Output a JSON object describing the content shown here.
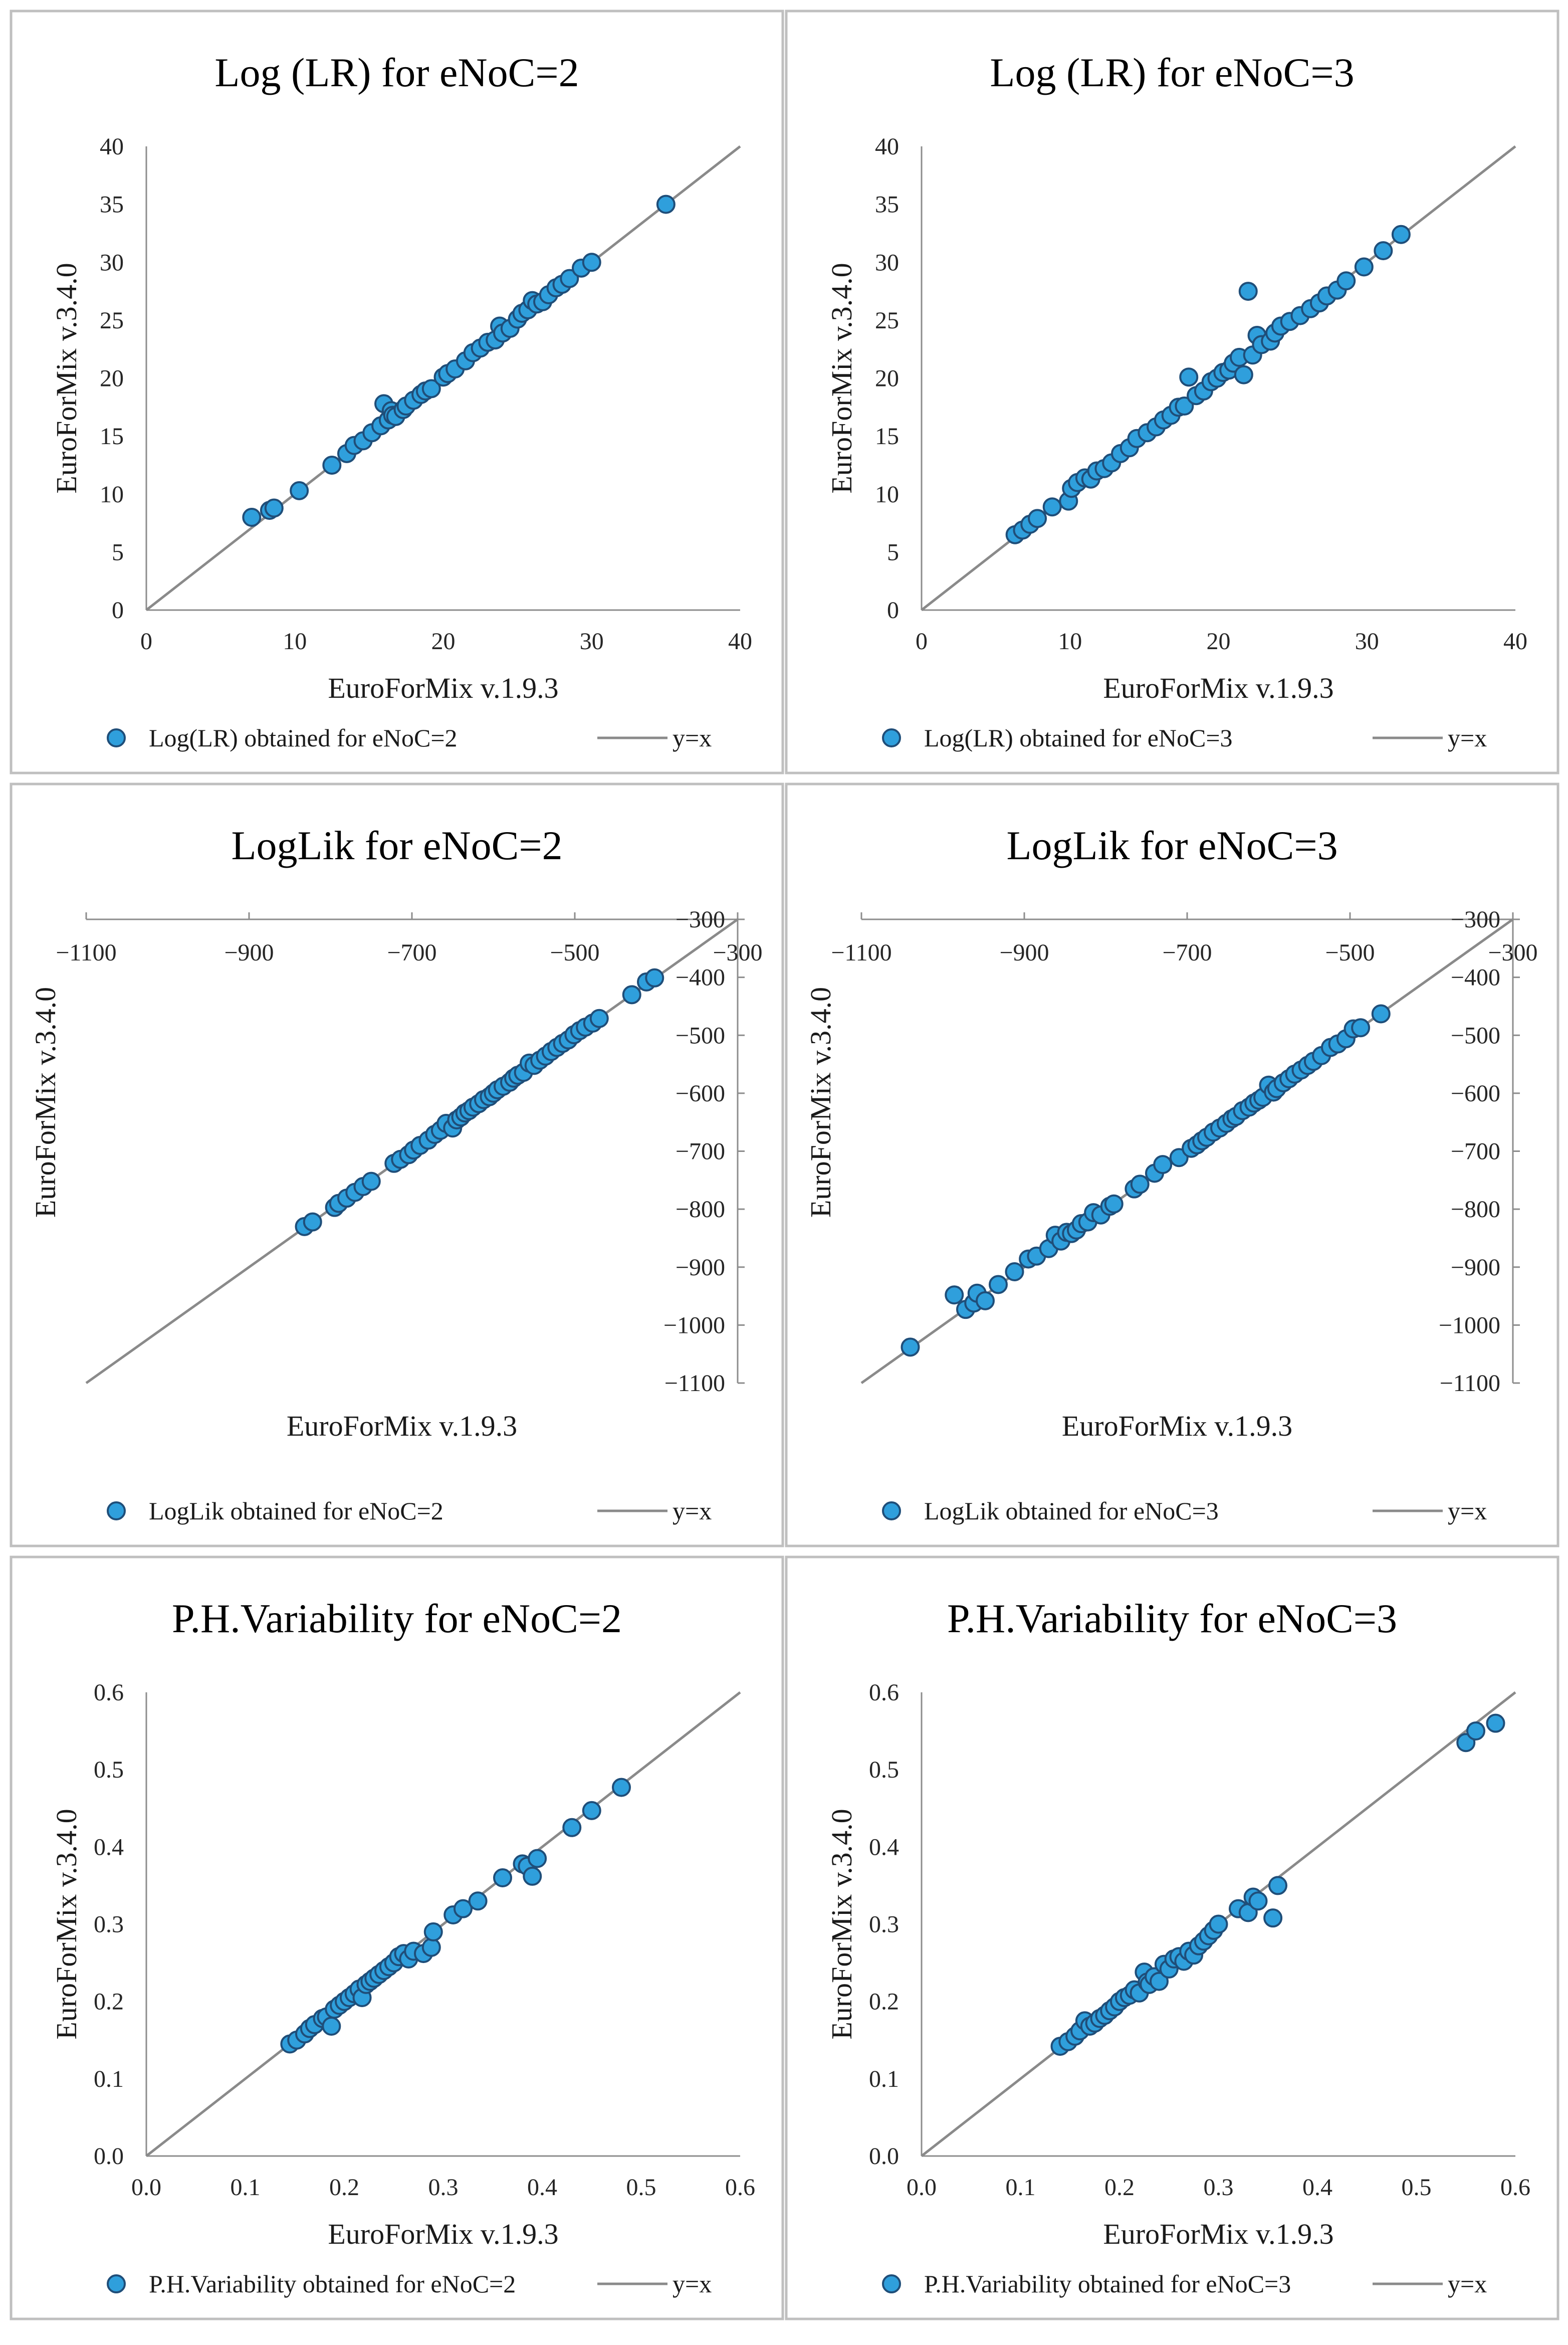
{
  "colors": {
    "marker_fill": "#2f9fdc",
    "marker_edge": "#1f4e79",
    "identity_line": "#8a8a8a",
    "panel_border": "#bfbfbf"
  },
  "chart_data": [
    {
      "type": "scatter",
      "title": "Log (LR) for eNoC=2",
      "xlabel": "EuroForMix v.1.9.3",
      "ylabel": "EuroForMix v.3.4.0",
      "xlim": [
        0,
        40
      ],
      "ylim": [
        0,
        40
      ],
      "xticks": [
        0,
        10,
        20,
        30,
        40
      ],
      "yticks": [
        0,
        5,
        10,
        15,
        20,
        25,
        30,
        35,
        40
      ],
      "tick_decimals": 0,
      "axis_style": "standard",
      "legend": {
        "series_label": "Log(LR) obtained for eNoC=2",
        "line_label": "y=x",
        "placement": "bottom"
      },
      "reference_line": {
        "name": "y=x",
        "from": [
          0,
          0
        ],
        "to": [
          40,
          40
        ]
      },
      "x": [
        7.1,
        8.3,
        8.6,
        10.3,
        12.5,
        13.5,
        14.0,
        14.6,
        15.2,
        15.8,
        16.0,
        16.3,
        16.5,
        16.6,
        16.8,
        17.3,
        17.5,
        18.0,
        18.5,
        18.8,
        19.2,
        20.0,
        20.3,
        20.8,
        21.5,
        22.0,
        22.5,
        23.0,
        23.5,
        23.8,
        24.0,
        24.5,
        25.0,
        25.3,
        25.7,
        26.0,
        26.3,
        26.7,
        27.1,
        27.6,
        28.0,
        28.5,
        29.3,
        30.0,
        35.0
      ],
      "y": [
        8.0,
        8.6,
        8.8,
        10.3,
        12.5,
        13.5,
        14.2,
        14.6,
        15.3,
        15.9,
        17.8,
        16.4,
        17.2,
        16.8,
        16.7,
        17.3,
        17.6,
        18.1,
        18.6,
        18.9,
        19.1,
        20.1,
        20.4,
        20.8,
        21.5,
        22.2,
        22.6,
        23.1,
        23.3,
        24.5,
        23.9,
        24.3,
        25.1,
        25.6,
        25.9,
        26.7,
        26.4,
        26.6,
        27.2,
        27.8,
        28.1,
        28.6,
        29.5,
        30.0,
        35.0
      ]
    },
    {
      "type": "scatter",
      "title": "Log (LR) for eNoC=3",
      "xlabel": "EuroForMix v.1.9.3",
      "ylabel": "EuroForMix v.3.4.0",
      "xlim": [
        0,
        40
      ],
      "ylim": [
        0,
        40
      ],
      "xticks": [
        0,
        10,
        20,
        30,
        40
      ],
      "yticks": [
        0,
        5,
        10,
        15,
        20,
        25,
        30,
        35,
        40
      ],
      "tick_decimals": 0,
      "axis_style": "standard",
      "legend": {
        "series_label": "Log(LR) obtained for eNoC=3",
        "line_label": "y=x",
        "placement": "bottom"
      },
      "reference_line": {
        "name": "y=x",
        "from": [
          0,
          0
        ],
        "to": [
          40,
          40
        ]
      },
      "x": [
        6.3,
        6.8,
        7.3,
        7.8,
        8.8,
        9.9,
        10.1,
        10.5,
        11.0,
        11.4,
        11.8,
        12.3,
        12.8,
        13.4,
        14.0,
        14.5,
        15.2,
        15.8,
        16.3,
        16.8,
        17.3,
        17.7,
        18.0,
        18.5,
        19.0,
        19.5,
        19.9,
        20.3,
        20.7,
        21.0,
        21.4,
        21.7,
        22.0,
        22.3,
        22.6,
        22.9,
        23.5,
        23.8,
        24.2,
        24.8,
        25.5,
        26.2,
        26.8,
        27.3,
        28.0,
        28.6,
        29.8,
        31.1,
        32.3
      ],
      "y": [
        6.5,
        6.9,
        7.4,
        7.9,
        8.9,
        9.4,
        10.5,
        11.0,
        11.4,
        11.3,
        12.0,
        12.2,
        12.7,
        13.5,
        14.0,
        14.8,
        15.3,
        15.8,
        16.4,
        16.8,
        17.5,
        17.6,
        20.1,
        18.5,
        18.9,
        19.7,
        20.0,
        20.5,
        20.7,
        21.3,
        21.8,
        20.3,
        27.5,
        22.0,
        23.7,
        22.9,
        23.2,
        23.9,
        24.5,
        24.9,
        25.4,
        26.0,
        26.5,
        27.1,
        27.6,
        28.4,
        29.6,
        31.0,
        32.4
      ]
    },
    {
      "type": "scatter",
      "title": "LogLik for eNoC=2",
      "xlabel": "EuroForMix v.1.9.3",
      "ylabel": "EuroForMix v.3.4.0",
      "xlim": [
        -1100,
        -300
      ],
      "ylim": [
        -1100,
        -300
      ],
      "xticks": [
        -1100,
        -900,
        -700,
        -500,
        -300
      ],
      "yticks": [
        -1100,
        -1000,
        -900,
        -800,
        -700,
        -600,
        -500,
        -400,
        -300
      ],
      "tick_decimals": 0,
      "axis_style": "crossed-top-right",
      "legend": {
        "series_label": "LogLik obtained for eNoC=2",
        "line_label": "y=x",
        "placement": "bottom"
      },
      "reference_line": {
        "name": "y=x",
        "from": [
          -1100,
          -1100
        ],
        "to": [
          -300,
          -300
        ]
      },
      "x": [
        -832,
        -822,
        -795,
        -790,
        -780,
        -770,
        -760,
        -750,
        -722,
        -714,
        -704,
        -698,
        -690,
        -680,
        -672,
        -665,
        -658,
        -650,
        -645,
        -640,
        -635,
        -630,
        -625,
        -618,
        -612,
        -605,
        -600,
        -595,
        -588,
        -580,
        -575,
        -570,
        -563,
        -556,
        -550,
        -543,
        -536,
        -529,
        -522,
        -515,
        -508,
        -501,
        -494,
        -487,
        -478,
        -470,
        -430,
        -412,
        -402
      ],
      "y": [
        -830,
        -822,
        -797,
        -790,
        -781,
        -771,
        -761,
        -752,
        -721,
        -714,
        -706,
        -698,
        -690,
        -681,
        -671,
        -664,
        -652,
        -660,
        -646,
        -641,
        -634,
        -630,
        -624,
        -618,
        -611,
        -606,
        -600,
        -594,
        -588,
        -581,
        -574,
        -569,
        -564,
        -548,
        -552,
        -543,
        -536,
        -528,
        -521,
        -514,
        -508,
        -499,
        -492,
        -486,
        -479,
        -471,
        -430,
        -408,
        -401
      ]
    },
    {
      "type": "scatter",
      "title": "LogLik for eNoC=3",
      "xlabel": "EuroForMix v.1.9.3",
      "ylabel": "EuroForMix v.3.4.0",
      "xlim": [
        -1100,
        -300
      ],
      "ylim": [
        -1100,
        -300
      ],
      "xticks": [
        -1100,
        -900,
        -700,
        -500,
        -300
      ],
      "yticks": [
        -1100,
        -1000,
        -900,
        -800,
        -700,
        -600,
        -500,
        -400,
        -300
      ],
      "tick_decimals": 0,
      "axis_style": "crossed-top-right",
      "legend": {
        "series_label": "LogLik obtained for eNoC=3",
        "line_label": "y=x",
        "placement": "bottom"
      },
      "reference_line": {
        "name": "y=x",
        "from": [
          -1100,
          -1100
        ],
        "to": [
          -300,
          -300
        ]
      },
      "x": [
        -1040,
        -986,
        -972,
        -962,
        -958,
        -948,
        -932,
        -912,
        -895,
        -885,
        -870,
        -862,
        -855,
        -848,
        -842,
        -836,
        -830,
        -822,
        -815,
        -806,
        -795,
        -790,
        -765,
        -758,
        -740,
        -730,
        -710,
        -695,
        -688,
        -682,
        -676,
        -668,
        -660,
        -652,
        -645,
        -640,
        -632,
        -624,
        -618,
        -612,
        -607,
        -600,
        -594,
        -590,
        -582,
        -575,
        -568,
        -560,
        -552,
        -545,
        -535,
        -524,
        -515,
        -505,
        -496,
        -487,
        -462
      ],
      "y": [
        -1038,
        -948,
        -973,
        -962,
        -945,
        -958,
        -930,
        -908,
        -886,
        -881,
        -868,
        -845,
        -855,
        -840,
        -842,
        -836,
        -825,
        -822,
        -806,
        -810,
        -795,
        -791,
        -765,
        -757,
        -738,
        -723,
        -711,
        -695,
        -689,
        -682,
        -676,
        -667,
        -660,
        -652,
        -644,
        -640,
        -630,
        -624,
        -617,
        -612,
        -607,
        -586,
        -598,
        -592,
        -582,
        -575,
        -567,
        -560,
        -552,
        -545,
        -535,
        -521,
        -515,
        -506,
        -489,
        -487,
        -463
      ]
    },
    {
      "type": "scatter",
      "title": "P.H.Variability for eNoC=2",
      "xlabel": "EuroForMix v.1.9.3",
      "ylabel": "EuroForMix v.3.4.0",
      "xlim": [
        0,
        0.6
      ],
      "ylim": [
        0,
        0.6
      ],
      "xticks": [
        0.0,
        0.1,
        0.2,
        0.3,
        0.4,
        0.5,
        0.6
      ],
      "yticks": [
        0.0,
        0.1,
        0.2,
        0.3,
        0.4,
        0.5,
        0.6
      ],
      "tick_decimals": 1,
      "axis_style": "standard",
      "legend": {
        "series_label": "P.H.Variability obtained for eNoC=2",
        "line_label": "y=x",
        "placement": "bottom"
      },
      "reference_line": {
        "name": "y=x",
        "from": [
          0,
          0
        ],
        "to": [
          0.6,
          0.6
        ]
      },
      "x": [
        0.145,
        0.152,
        0.16,
        0.165,
        0.17,
        0.178,
        0.182,
        0.187,
        0.19,
        0.195,
        0.2,
        0.205,
        0.21,
        0.215,
        0.218,
        0.222,
        0.226,
        0.23,
        0.235,
        0.24,
        0.245,
        0.25,
        0.255,
        0.26,
        0.265,
        0.27,
        0.28,
        0.288,
        0.29,
        0.31,
        0.32,
        0.335,
        0.36,
        0.38,
        0.385,
        0.39,
        0.395,
        0.43,
        0.45,
        0.48
      ],
      "y": [
        0.145,
        0.15,
        0.158,
        0.165,
        0.17,
        0.178,
        0.18,
        0.168,
        0.19,
        0.195,
        0.2,
        0.205,
        0.21,
        0.216,
        0.205,
        0.222,
        0.226,
        0.23,
        0.235,
        0.24,
        0.245,
        0.25,
        0.258,
        0.262,
        0.255,
        0.265,
        0.262,
        0.27,
        0.29,
        0.312,
        0.32,
        0.33,
        0.36,
        0.378,
        0.375,
        0.362,
        0.385,
        0.425,
        0.447,
        0.477
      ]
    },
    {
      "type": "scatter",
      "title": "P.H.Variability for eNoC=3",
      "xlabel": "EuroForMix v.1.9.3",
      "ylabel": "EuroForMix v.3.4.0",
      "xlim": [
        0,
        0.6
      ],
      "ylim": [
        0,
        0.6
      ],
      "xticks": [
        0.0,
        0.1,
        0.2,
        0.3,
        0.4,
        0.5,
        0.6
      ],
      "yticks": [
        0.0,
        0.1,
        0.2,
        0.3,
        0.4,
        0.5,
        0.6
      ],
      "tick_decimals": 1,
      "axis_style": "standard",
      "legend": {
        "series_label": "P.H.Variability obtained for eNoC=3",
        "line_label": "y=x",
        "placement": "bottom"
      },
      "reference_line": {
        "name": "y=x",
        "from": [
          0,
          0
        ],
        "to": [
          0.6,
          0.6
        ]
      },
      "x": [
        0.14,
        0.148,
        0.155,
        0.16,
        0.165,
        0.17,
        0.175,
        0.18,
        0.185,
        0.19,
        0.195,
        0.2,
        0.205,
        0.21,
        0.215,
        0.22,
        0.225,
        0.228,
        0.23,
        0.235,
        0.24,
        0.245,
        0.25,
        0.255,
        0.26,
        0.265,
        0.27,
        0.275,
        0.28,
        0.285,
        0.29,
        0.295,
        0.3,
        0.32,
        0.33,
        0.335,
        0.34,
        0.355,
        0.36,
        0.55,
        0.56,
        0.58
      ],
      "y": [
        0.142,
        0.148,
        0.155,
        0.162,
        0.175,
        0.168,
        0.172,
        0.178,
        0.182,
        0.188,
        0.193,
        0.2,
        0.205,
        0.208,
        0.215,
        0.211,
        0.238,
        0.225,
        0.222,
        0.232,
        0.226,
        0.248,
        0.242,
        0.255,
        0.258,
        0.252,
        0.265,
        0.26,
        0.272,
        0.278,
        0.285,
        0.292,
        0.3,
        0.32,
        0.315,
        0.335,
        0.33,
        0.308,
        0.35,
        0.535,
        0.55,
        0.56
      ]
    }
  ]
}
